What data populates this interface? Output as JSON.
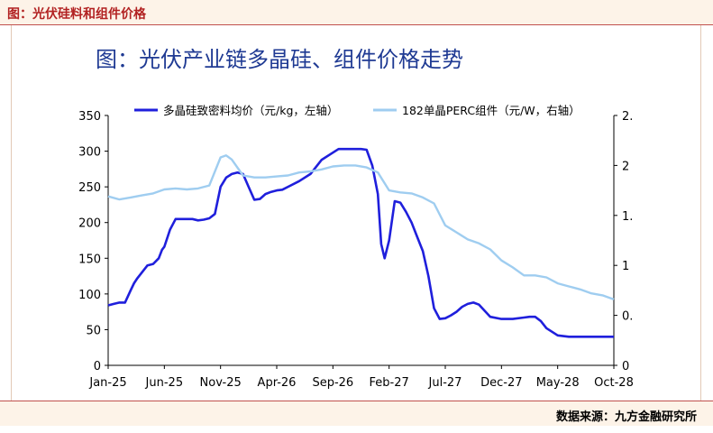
{
  "header": {
    "title": "图：光伏硅料和组件价格"
  },
  "footer": {
    "source": "数据来源：九方金融研究所"
  },
  "chart_data": {
    "type": "line",
    "title": "图：光伏产业链多晶硅、组件价格走势",
    "x_ticks": [
      "Jan-25",
      "Jun-25",
      "Nov-25",
      "Apr-26",
      "Sep-26",
      "Feb-27",
      "Jul-27",
      "Dec-27",
      "May-28",
      "Oct-28"
    ],
    "xlim": [
      0,
      45
    ],
    "y_left": {
      "lim": [
        0,
        350
      ],
      "ticks": [
        0,
        50,
        100,
        150,
        200,
        250,
        300,
        350
      ]
    },
    "y_right": {
      "lim": [
        0,
        2.5
      ],
      "ticks": [
        "0",
        "0.5",
        "1",
        "1.5",
        "2",
        "2.5"
      ]
    },
    "legend_position": "top",
    "series": [
      {
        "name": "多晶硅致密料均价（元/kg，左轴）",
        "axis": "left",
        "color": "#1f1fdc",
        "x": [
          0,
          0.5,
          1,
          1.5,
          2,
          2.3,
          2.6,
          3,
          3.5,
          4,
          4.5,
          4.8,
          5,
          5.5,
          6,
          6.5,
          7,
          7.5,
          8,
          8.5,
          9,
          9.5,
          10,
          10.5,
          11,
          11.5,
          12,
          12.5,
          13,
          13.5,
          14,
          14.5,
          15,
          15.5,
          16,
          17,
          18,
          19,
          20,
          20.5,
          21,
          21.5,
          22,
          22.5,
          23,
          23.5,
          24,
          24.3,
          24.6,
          25,
          25.5,
          26,
          26.5,
          27,
          27.5,
          28,
          28.5,
          29,
          29.5,
          30,
          30.5,
          31,
          31.5,
          32,
          32.5,
          33,
          34,
          35,
          36,
          37,
          37.5,
          38,
          38.5,
          39,
          40,
          41,
          42,
          43,
          44,
          45
        ],
        "values": [
          84,
          86,
          88,
          88,
          105,
          115,
          122,
          130,
          140,
          142,
          150,
          162,
          166,
          190,
          205,
          205,
          205,
          205,
          203,
          204,
          206,
          212,
          250,
          263,
          268,
          270,
          268,
          250,
          232,
          233,
          240,
          243,
          245,
          246,
          250,
          258,
          268,
          288,
          298,
          303,
          303,
          303,
          303,
          303,
          302,
          280,
          240,
          170,
          150,
          175,
          230,
          228,
          215,
          200,
          180,
          160,
          125,
          80,
          65,
          66,
          70,
          75,
          82,
          86,
          88,
          85,
          68,
          65,
          65,
          67,
          68,
          68,
          62,
          52,
          42,
          40,
          40,
          40,
          40,
          40
        ]
      },
      {
        "name": "182单晶PERC组件（元/W，右轴）",
        "axis": "right",
        "color": "#9fcdf0",
        "x": [
          0,
          1,
          2,
          3,
          4,
          5,
          6,
          7,
          8,
          9,
          10,
          10.5,
          11,
          12,
          13,
          14,
          15,
          16,
          17,
          18,
          19,
          20,
          21,
          22,
          23,
          24,
          25,
          26,
          27,
          28,
          29,
          30,
          31,
          32,
          33,
          34,
          35,
          36,
          37,
          38,
          39,
          40,
          41,
          42,
          43,
          44,
          45
        ],
        "values": [
          1.69,
          1.66,
          1.68,
          1.7,
          1.72,
          1.76,
          1.77,
          1.76,
          1.77,
          1.8,
          2.08,
          2.1,
          2.06,
          1.9,
          1.88,
          1.88,
          1.89,
          1.9,
          1.93,
          1.94,
          1.96,
          1.99,
          2.0,
          2.0,
          1.98,
          1.93,
          1.75,
          1.73,
          1.72,
          1.68,
          1.62,
          1.4,
          1.33,
          1.26,
          1.22,
          1.16,
          1.05,
          0.98,
          0.9,
          0.9,
          0.88,
          0.82,
          0.79,
          0.76,
          0.72,
          0.7,
          0.66
        ]
      }
    ]
  }
}
